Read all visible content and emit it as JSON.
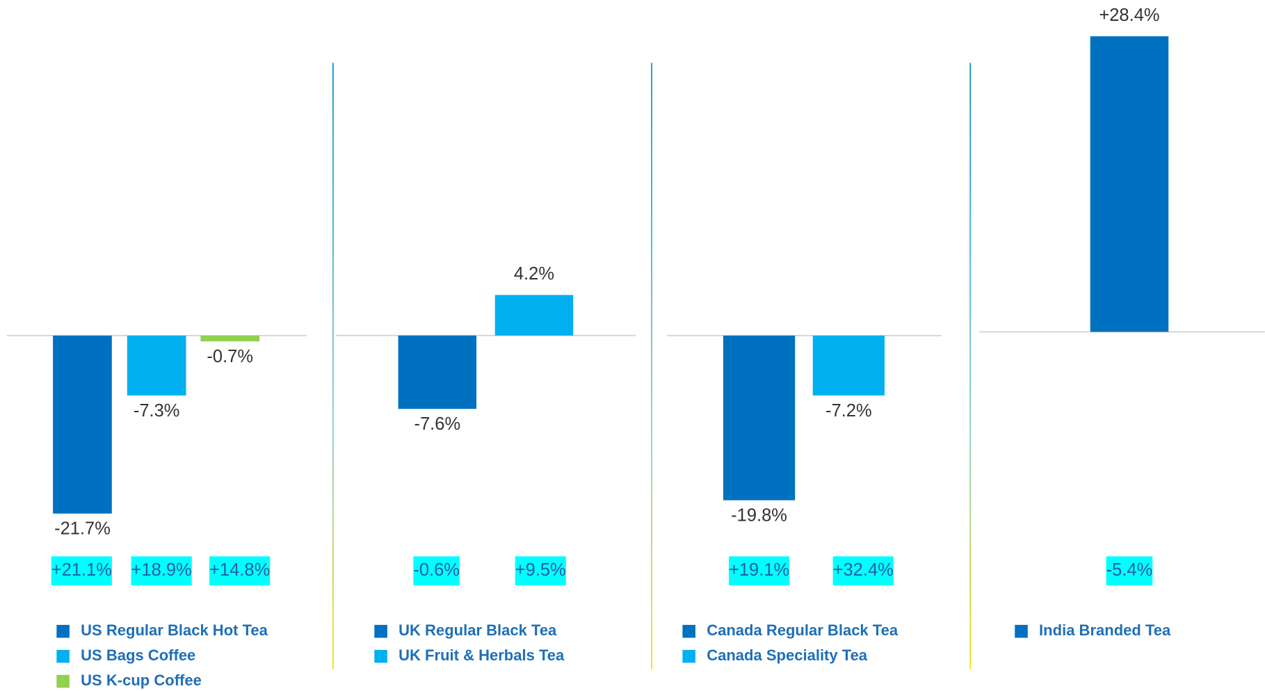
{
  "chart_data": [
    {
      "type": "bar",
      "ylim": [
        -22,
        36.5
      ],
      "series": [
        {
          "name": "US Regular Black Hot Tea",
          "color": "#0070c0",
          "values": [
            -21.7
          ],
          "value_labels": [
            "-21.7%"
          ]
        },
        {
          "name": "US Bags Coffee",
          "color": "#00b0f0",
          "values": [
            -7.3
          ],
          "value_labels": [
            "-7.3%"
          ]
        },
        {
          "name": "US K-cup Coffee",
          "color": "#92d050",
          "values": [
            -0.7
          ],
          "value_labels": [
            "-0.7%"
          ]
        }
      ],
      "annotations": [
        "+21.1%",
        "+18.9%",
        "+14.8%"
      ]
    },
    {
      "type": "bar",
      "ylim": [
        -18.7,
        31
      ],
      "series": [
        {
          "name": "UK Regular Black Tea",
          "color": "#0070c0",
          "values": [
            -7.6
          ],
          "value_labels": [
            "-7.6%"
          ]
        },
        {
          "name": "UK Fruit & Herbals Tea",
          "color": "#00b0f0",
          "values": [
            4.2
          ],
          "value_labels": [
            "4.2%"
          ]
        }
      ],
      "annotations": [
        "-0.6%",
        "+9.5%"
      ]
    },
    {
      "type": "bar",
      "ylim": [
        -21.7,
        36
      ],
      "series": [
        {
          "name": "Canada Regular Black Tea",
          "color": "#0070c0",
          "values": [
            -19.8
          ],
          "value_labels": [
            "-19.8%"
          ]
        },
        {
          "name": "Canada Speciality Tea",
          "color": "#00b0f0",
          "values": [
            -7.2
          ],
          "value_labels": [
            "-7.2%"
          ]
        }
      ],
      "annotations": [
        "+19.1%",
        "+32.4%"
      ]
    },
    {
      "type": "bar",
      "ylim": [
        -17.7,
        28.4
      ],
      "series": [
        {
          "name": "India Branded Tea",
          "color": "#0070c0",
          "values": [
            28.4
          ],
          "value_labels": [
            "+28.4%"
          ]
        }
      ],
      "annotations": [
        "-5.4%"
      ]
    }
  ]
}
